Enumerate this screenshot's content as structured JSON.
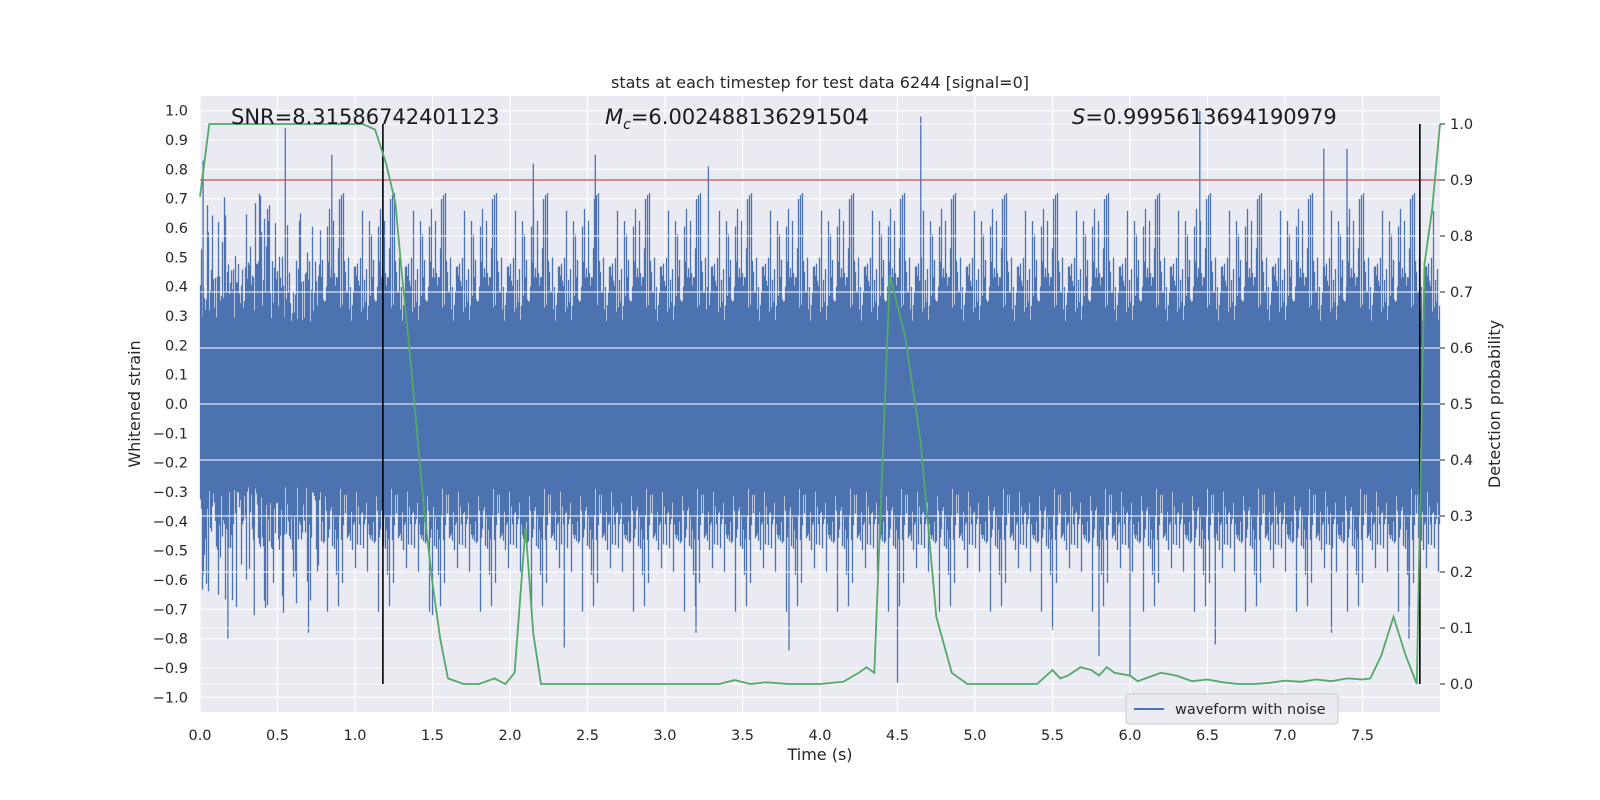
{
  "chart_data": {
    "type": "line",
    "title": "stats at each timestep for test data 6244 [signal=0]",
    "xlabel": "Time (s)",
    "ylabel": "Whitened strain",
    "y2label": "Detection probability",
    "xlim": [
      0.0,
      8.0
    ],
    "ylim": [
      -1.05,
      1.05
    ],
    "y2lim": [
      -0.05,
      1.05
    ],
    "x_ticks": [
      0.0,
      0.5,
      1.0,
      1.5,
      2.0,
      2.5,
      3.0,
      3.5,
      4.0,
      4.5,
      5.0,
      5.5,
      6.0,
      6.5,
      7.0,
      7.5
    ],
    "x_tick_labels": [
      "0.0",
      "0.5",
      "1.0",
      "1.5",
      "2.0",
      "2.5",
      "3.0",
      "3.5",
      "4.0",
      "4.5",
      "5.0",
      "5.5",
      "6.0",
      "6.5",
      "7.0",
      "7.5"
    ],
    "y_ticks": [
      -1.0,
      -0.9,
      -0.8,
      -0.7,
      -0.6,
      -0.5,
      -0.4,
      -0.3,
      -0.2,
      -0.1,
      0.0,
      0.1,
      0.2,
      0.3,
      0.4,
      0.5,
      0.6,
      0.7,
      0.8,
      0.9,
      1.0
    ],
    "y_tick_labels": [
      "−1.0",
      "−0.9",
      "−0.8",
      "−0.7",
      "−0.6",
      "−0.5",
      "−0.4",
      "−0.3",
      "−0.2",
      "−0.1",
      "0.0",
      "0.1",
      "0.2",
      "0.3",
      "0.4",
      "0.5",
      "0.6",
      "0.7",
      "0.8",
      "0.9",
      "1.0"
    ],
    "y2_ticks": [
      0.0,
      0.1,
      0.2,
      0.3,
      0.4,
      0.5,
      0.6,
      0.7,
      0.8,
      0.9,
      1.0
    ],
    "y2_tick_labels": [
      "0.0",
      "0.1",
      "0.2",
      "0.3",
      "0.4",
      "0.5",
      "0.6",
      "0.7",
      "0.8",
      "0.9",
      "1.0"
    ],
    "grid": true,
    "legend": {
      "location": "lower-right",
      "entries": [
        "waveform with noise"
      ]
    },
    "stats": {
      "snr": "SNR=8.31586742401123",
      "mc_symbol": "M",
      "mc_sub": "c",
      "mc_value": "=6.002488136291504",
      "s_symbol": "S",
      "s_value": "=0.9995613694190979"
    },
    "threshold": {
      "y2": 0.9,
      "color": "#c44e52"
    },
    "vlines": [
      1.18,
      7.87
    ],
    "waveform": {
      "name": "waveform with noise",
      "color": "#4c72b0",
      "typical_envelope": [
        -0.42,
        0.42
      ],
      "peaks": [
        [
          0.02,
          0.83
        ],
        [
          0.55,
          0.94
        ],
        [
          0.85,
          0.85
        ],
        [
          2.15,
          0.82
        ],
        [
          2.55,
          0.85
        ],
        [
          3.28,
          0.81
        ],
        [
          4.65,
          0.98
        ],
        [
          6.45,
          1.0
        ],
        [
          7.25,
          0.87
        ],
        [
          7.4,
          0.87
        ],
        [
          0.18,
          -0.8
        ],
        [
          0.35,
          -0.72
        ],
        [
          0.7,
          -0.78
        ],
        [
          1.5,
          -0.72
        ],
        [
          2.35,
          -0.83
        ],
        [
          3.2,
          -0.78
        ],
        [
          3.8,
          -0.84
        ],
        [
          4.5,
          -0.95
        ],
        [
          5.5,
          -0.77
        ],
        [
          5.8,
          -0.86
        ],
        [
          6.0,
          -0.93
        ],
        [
          6.55,
          -0.82
        ],
        [
          7.3,
          -0.78
        ],
        [
          7.8,
          -0.8
        ]
      ]
    },
    "probability": {
      "name": "detection probability",
      "color": "#55a868",
      "x": [
        0.0,
        0.06,
        0.2,
        0.4,
        0.6,
        0.8,
        0.95,
        1.05,
        1.13,
        1.2,
        1.26,
        1.3,
        1.35,
        1.4,
        1.45,
        1.5,
        1.55,
        1.6,
        1.7,
        1.8,
        1.9,
        1.97,
        2.03,
        2.1,
        2.15,
        2.2,
        2.25,
        2.3,
        2.4,
        2.6,
        2.8,
        3.0,
        3.2,
        3.35,
        3.45,
        3.55,
        3.65,
        3.8,
        4.0,
        4.15,
        4.25,
        4.3,
        4.35,
        4.45,
        4.55,
        4.65,
        4.75,
        4.85,
        4.95,
        5.1,
        5.3,
        5.4,
        5.5,
        5.55,
        5.6,
        5.68,
        5.75,
        5.8,
        5.85,
        5.9,
        6.0,
        6.05,
        6.1,
        6.2,
        6.3,
        6.4,
        6.5,
        6.6,
        6.7,
        6.8,
        6.9,
        7.0,
        7.1,
        7.2,
        7.3,
        7.4,
        7.5,
        7.55,
        7.62,
        7.7,
        7.78,
        7.85,
        7.9,
        7.95,
        8.0
      ],
      "y": [
        0.87,
        1.0,
        1.0,
        1.0,
        1.0,
        1.0,
        1.0,
        1.0,
        0.99,
        0.93,
        0.86,
        0.74,
        0.6,
        0.45,
        0.3,
        0.18,
        0.08,
        0.01,
        0.0,
        0.0,
        0.01,
        0.0,
        0.02,
        0.28,
        0.09,
        0.0,
        0.0,
        0.0,
        0.0,
        0.0,
        0.0,
        0.0,
        0.0,
        0.0,
        0.007,
        0.0,
        0.003,
        0.0,
        0.0,
        0.004,
        0.02,
        0.03,
        0.02,
        0.73,
        0.62,
        0.43,
        0.12,
        0.02,
        0.0,
        0.0,
        0.0,
        0.0,
        0.025,
        0.01,
        0.015,
        0.03,
        0.025,
        0.015,
        0.03,
        0.02,
        0.015,
        0.005,
        0.01,
        0.02,
        0.015,
        0.005,
        0.008,
        0.003,
        0.0,
        0.0,
        0.002,
        0.006,
        0.004,
        0.008,
        0.005,
        0.01,
        0.008,
        0.01,
        0.05,
        0.12,
        0.05,
        0.0,
        0.75,
        0.85,
        1.0
      ]
    }
  }
}
